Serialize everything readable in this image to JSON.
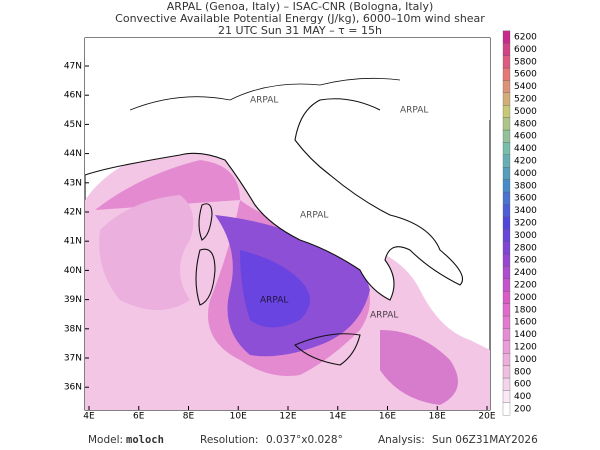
{
  "header": {
    "line1": "ARPAL (Genoa, Italy)  –  ISAC-CNR (Bologna, Italy)",
    "line2": "Convective Available Potential Energy (J/kg), 6000–10m wind shear",
    "line3": "21 UTC Sun 31 MAY  –  τ = 15h"
  },
  "map": {
    "lat_labels": [
      "47N",
      "46N",
      "45N",
      "44N",
      "43N",
      "42N",
      "41N",
      "40N",
      "39N",
      "38N",
      "37N",
      "36N"
    ],
    "lon_labels": [
      "4E",
      "6E",
      "8E",
      "10E",
      "12E",
      "14E",
      "16E",
      "18E",
      "20E"
    ],
    "watermark": "ARPAL"
  },
  "colorbar": {
    "levels": [
      200,
      400,
      600,
      800,
      1000,
      1200,
      1400,
      1600,
      1800,
      2000,
      2200,
      2400,
      2600,
      2800,
      3000,
      3200,
      3400,
      3600,
      3800,
      4000,
      4200,
      4400,
      4600,
      4800,
      5000,
      5200,
      5400,
      5600,
      5800,
      6000,
      6200
    ]
  },
  "footer": {
    "model_label": "Model:",
    "model": "moloch",
    "resolution_label": "Resolution:",
    "resolution": "0.037°x0.028°",
    "analysis_label": "Analysis:",
    "analysis": "Sun 06Z31MAY2026"
  }
}
